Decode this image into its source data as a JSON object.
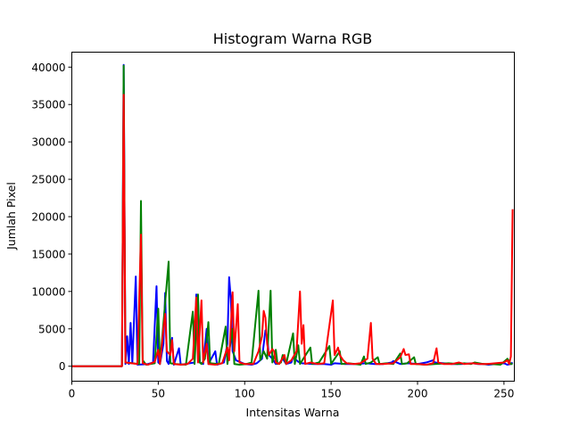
{
  "chart_data": {
    "type": "line",
    "title": "Histogram Warna RGB",
    "xlabel": "Intensitas Warna",
    "ylabel": "Jumlah Pixel",
    "xlim": [
      0,
      256
    ],
    "ylim": [
      -2000,
      42000
    ],
    "xticks": [
      0,
      50,
      100,
      150,
      200,
      250
    ],
    "yticks": [
      0,
      5000,
      10000,
      15000,
      20000,
      25000,
      30000,
      35000,
      40000
    ],
    "grid": false,
    "series": [
      {
        "name": "Blue",
        "color": "#0000ff",
        "points": [
          [
            0,
            0
          ],
          [
            29,
            0
          ],
          [
            30,
            40300
          ],
          [
            31,
            300
          ],
          [
            32,
            4000
          ],
          [
            33,
            300
          ],
          [
            34,
            5800
          ],
          [
            35,
            400
          ],
          [
            37,
            12000
          ],
          [
            38,
            200
          ],
          [
            44,
            300
          ],
          [
            47,
            500
          ],
          [
            49,
            10700
          ],
          [
            50,
            500
          ],
          [
            51,
            300
          ],
          [
            53,
            3000
          ],
          [
            54,
            9800
          ],
          [
            55,
            700
          ],
          [
            56,
            300
          ],
          [
            58,
            3800
          ],
          [
            59,
            200
          ],
          [
            62,
            2400
          ],
          [
            63,
            200
          ],
          [
            71,
            500
          ],
          [
            72,
            9600
          ],
          [
            73,
            9000
          ],
          [
            74,
            500
          ],
          [
            76,
            300
          ],
          [
            78,
            5000
          ],
          [
            79,
            300
          ],
          [
            83,
            2000
          ],
          [
            84,
            200
          ],
          [
            88,
            500
          ],
          [
            90,
            3000
          ],
          [
            91,
            11900
          ],
          [
            92,
            9000
          ],
          [
            93,
            2000
          ],
          [
            95,
            800
          ],
          [
            100,
            300
          ],
          [
            104,
            200
          ],
          [
            107,
            400
          ],
          [
            110,
            1000
          ],
          [
            112,
            4800
          ],
          [
            113,
            4000
          ],
          [
            114,
            1500
          ],
          [
            116,
            1000
          ],
          [
            118,
            300
          ],
          [
            120,
            400
          ],
          [
            122,
            1000
          ],
          [
            124,
            300
          ],
          [
            127,
            500
          ],
          [
            128,
            1200
          ],
          [
            131,
            600
          ],
          [
            133,
            400
          ],
          [
            140,
            300
          ],
          [
            146,
            300
          ],
          [
            150,
            200
          ],
          [
            152,
            400
          ],
          [
            158,
            300
          ],
          [
            165,
            300
          ],
          [
            170,
            400
          ],
          [
            175,
            300
          ],
          [
            180,
            300
          ],
          [
            185,
            500
          ],
          [
            186,
            700
          ],
          [
            188,
            500
          ],
          [
            190,
            300
          ],
          [
            195,
            400
          ],
          [
            200,
            300
          ],
          [
            205,
            500
          ],
          [
            209,
            800
          ],
          [
            210,
            500
          ],
          [
            215,
            400
          ],
          [
            220,
            300
          ],
          [
            225,
            300
          ],
          [
            232,
            400
          ],
          [
            235,
            300
          ],
          [
            238,
            300
          ],
          [
            241,
            200
          ],
          [
            245,
            300
          ],
          [
            250,
            400
          ],
          [
            252,
            200
          ],
          [
            254,
            300
          ],
          [
            255,
            500
          ]
        ]
      },
      {
        "name": "Green",
        "color": "#008000",
        "points": [
          [
            0,
            0
          ],
          [
            29,
            0
          ],
          [
            30,
            40200
          ],
          [
            31,
            500
          ],
          [
            39,
            300
          ],
          [
            40,
            22100
          ],
          [
            41,
            800
          ],
          [
            43,
            200
          ],
          [
            48,
            400
          ],
          [
            50,
            7700
          ],
          [
            51,
            300
          ],
          [
            56,
            14000
          ],
          [
            57,
            400
          ],
          [
            60,
            300
          ],
          [
            66,
            200
          ],
          [
            70,
            7300
          ],
          [
            71,
            300
          ],
          [
            73,
            9600
          ],
          [
            74,
            500
          ],
          [
            75,
            300
          ],
          [
            77,
            1000
          ],
          [
            79,
            5900
          ],
          [
            80,
            400
          ],
          [
            85,
            300
          ],
          [
            89,
            5300
          ],
          [
            90,
            300
          ],
          [
            93,
            5000
          ],
          [
            94,
            300
          ],
          [
            97,
            200
          ],
          [
            101,
            300
          ],
          [
            104,
            500
          ],
          [
            108,
            10100
          ],
          [
            109,
            800
          ],
          [
            111,
            2000
          ],
          [
            113,
            1000
          ],
          [
            115,
            10100
          ],
          [
            116,
            500
          ],
          [
            118,
            2200
          ],
          [
            119,
            300
          ],
          [
            121,
            500
          ],
          [
            122,
            1500
          ],
          [
            124,
            300
          ],
          [
            128,
            4400
          ],
          [
            129,
            300
          ],
          [
            131,
            2800
          ],
          [
            132,
            300
          ],
          [
            138,
            2500
          ],
          [
            139,
            300
          ],
          [
            143,
            500
          ],
          [
            149,
            2700
          ],
          [
            150,
            300
          ],
          [
            155,
            2000
          ],
          [
            156,
            300
          ],
          [
            160,
            400
          ],
          [
            164,
            300
          ],
          [
            167,
            200
          ],
          [
            169,
            1300
          ],
          [
            170,
            300
          ],
          [
            173,
            500
          ],
          [
            177,
            1200
          ],
          [
            178,
            300
          ],
          [
            182,
            400
          ],
          [
            186,
            300
          ],
          [
            190,
            1700
          ],
          [
            191,
            300
          ],
          [
            194,
            400
          ],
          [
            198,
            1200
          ],
          [
            199,
            300
          ],
          [
            205,
            200
          ],
          [
            210,
            300
          ],
          [
            218,
            400
          ],
          [
            223,
            300
          ],
          [
            227,
            400
          ],
          [
            231,
            300
          ],
          [
            233,
            500
          ],
          [
            238,
            300
          ],
          [
            243,
            300
          ],
          [
            248,
            200
          ],
          [
            252,
            1000
          ],
          [
            254,
            300
          ],
          [
            255,
            300
          ]
        ]
      },
      {
        "name": "Red",
        "color": "#ff0000",
        "points": [
          [
            0,
            0
          ],
          [
            29,
            0
          ],
          [
            30,
            36300
          ],
          [
            31,
            500
          ],
          [
            38,
            300
          ],
          [
            40,
            17600
          ],
          [
            41,
            400
          ],
          [
            44,
            200
          ],
          [
            48,
            600
          ],
          [
            50,
            2200
          ],
          [
            51,
            300
          ],
          [
            53,
            5000
          ],
          [
            54,
            7000
          ],
          [
            55,
            2000
          ],
          [
            57,
            1500
          ],
          [
            58,
            3500
          ],
          [
            59,
            300
          ],
          [
            63,
            200
          ],
          [
            67,
            300
          ],
          [
            70,
            1000
          ],
          [
            72,
            9200
          ],
          [
            73,
            500
          ],
          [
            75,
            8800
          ],
          [
            76,
            500
          ],
          [
            78,
            3000
          ],
          [
            79,
            300
          ],
          [
            83,
            200
          ],
          [
            87,
            400
          ],
          [
            90,
            2500
          ],
          [
            91,
            800
          ],
          [
            93,
            9900
          ],
          [
            94,
            2000
          ],
          [
            96,
            8300
          ],
          [
            97,
            500
          ],
          [
            100,
            300
          ],
          [
            105,
            300
          ],
          [
            108,
            2000
          ],
          [
            110,
            4000
          ],
          [
            111,
            7400
          ],
          [
            112,
            6500
          ],
          [
            113,
            3000
          ],
          [
            114,
            1500
          ],
          [
            116,
            2300
          ],
          [
            117,
            2000
          ],
          [
            118,
            500
          ],
          [
            120,
            300
          ],
          [
            123,
            1500
          ],
          [
            124,
            300
          ],
          [
            127,
            800
          ],
          [
            130,
            2000
          ],
          [
            132,
            10000
          ],
          [
            133,
            3000
          ],
          [
            134,
            5500
          ],
          [
            135,
            300
          ],
          [
            138,
            500
          ],
          [
            142,
            300
          ],
          [
            146,
            400
          ],
          [
            151,
            8800
          ],
          [
            152,
            1500
          ],
          [
            154,
            2500
          ],
          [
            155,
            1500
          ],
          [
            157,
            800
          ],
          [
            159,
            400
          ],
          [
            163,
            300
          ],
          [
            167,
            400
          ],
          [
            171,
            1000
          ],
          [
            173,
            5800
          ],
          [
            174,
            1000
          ],
          [
            176,
            300
          ],
          [
            180,
            300
          ],
          [
            186,
            400
          ],
          [
            190,
            1200
          ],
          [
            192,
            2300
          ],
          [
            193,
            1500
          ],
          [
            195,
            1600
          ],
          [
            196,
            300
          ],
          [
            200,
            300
          ],
          [
            205,
            200
          ],
          [
            209,
            400
          ],
          [
            211,
            2400
          ],
          [
            212,
            500
          ],
          [
            215,
            300
          ],
          [
            220,
            300
          ],
          [
            224,
            500
          ],
          [
            227,
            300
          ],
          [
            232,
            400
          ],
          [
            236,
            300
          ],
          [
            240,
            300
          ],
          [
            245,
            400
          ],
          [
            250,
            500
          ],
          [
            252,
            800
          ],
          [
            253,
            300
          ],
          [
            254,
            1300
          ],
          [
            255,
            21000
          ]
        ]
      }
    ]
  }
}
